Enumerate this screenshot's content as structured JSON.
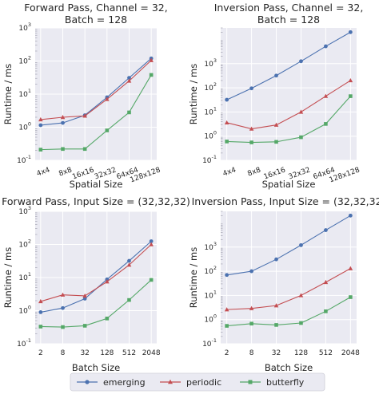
{
  "chart_data": [
    {
      "type": "line",
      "title_lines": [
        "Forward Pass, Channel = 32,",
        "Batch = 128"
      ],
      "xlabel": "Spatial Size",
      "ylabel": "Runtime / ms",
      "yscale": "log",
      "ylim": [
        0.1,
        1000
      ],
      "ytick_labels": [
        {
          "base": "10",
          "exp": "-1"
        },
        {
          "base": "10",
          "exp": "0"
        },
        {
          "base": "10",
          "exp": "1"
        },
        {
          "base": "10",
          "exp": "2"
        },
        {
          "base": "10",
          "exp": "3"
        }
      ],
      "categories": [
        "4x4",
        "8x8",
        "16x16",
        "32x32",
        "64x64",
        "128x128"
      ],
      "tick_rotation": 20,
      "series": [
        {
          "name": "emerging",
          "values": [
            1.15,
            1.35,
            2.3,
            8.0,
            31,
            120
          ]
        },
        {
          "name": "periodic",
          "values": [
            1.7,
            2.0,
            2.2,
            7.0,
            25,
            105
          ]
        },
        {
          "name": "butterfly",
          "values": [
            0.21,
            0.22,
            0.22,
            0.8,
            2.8,
            38
          ]
        }
      ]
    },
    {
      "type": "line",
      "title_lines": [
        "Inversion Pass, Channel = 32,",
        "Batch = 128"
      ],
      "xlabel": "Spatial Size",
      "ylabel": "Runtime / ms",
      "yscale": "log",
      "ylim": [
        0.1,
        30000
      ],
      "ytick_labels": [
        {
          "base": "10",
          "exp": "-1"
        },
        {
          "base": "10",
          "exp": "0"
        },
        {
          "base": "10",
          "exp": "1"
        },
        {
          "base": "10",
          "exp": "2"
        },
        {
          "base": "10",
          "exp": "3"
        }
      ],
      "categories": [
        "4x4",
        "8x8",
        "16x16",
        "32x32",
        "64x64",
        "128x128"
      ],
      "tick_rotation": 20,
      "series": [
        {
          "name": "emerging",
          "values": [
            32,
            95,
            320,
            1250,
            5200,
            20000
          ]
        },
        {
          "name": "periodic",
          "values": [
            3.6,
            2.0,
            2.9,
            10,
            45,
            200
          ]
        },
        {
          "name": "butterfly",
          "values": [
            0.6,
            0.55,
            0.58,
            0.9,
            3.2,
            45
          ]
        }
      ]
    },
    {
      "type": "line",
      "title_lines": [
        "Forward Pass, Input Size = (32,32,32)"
      ],
      "xlabel": "Batch Size",
      "ylabel": "Runtime / ms",
      "yscale": "log",
      "ylim": [
        0.1,
        1000
      ],
      "ytick_labels": [
        {
          "base": "10",
          "exp": "-1"
        },
        {
          "base": "10",
          "exp": "0"
        },
        {
          "base": "10",
          "exp": "1"
        },
        {
          "base": "10",
          "exp": "2"
        },
        {
          "base": "10",
          "exp": "3"
        }
      ],
      "categories": [
        "2",
        "8",
        "32",
        "128",
        "512",
        "2048"
      ],
      "tick_rotation": 0,
      "series": [
        {
          "name": "emerging",
          "values": [
            0.9,
            1.2,
            2.3,
            8.8,
            32,
            125
          ]
        },
        {
          "name": "periodic",
          "values": [
            1.9,
            3.0,
            2.8,
            7.5,
            24,
            100
          ]
        },
        {
          "name": "butterfly",
          "values": [
            0.33,
            0.32,
            0.35,
            0.58,
            2.1,
            8.5
          ]
        }
      ]
    },
    {
      "type": "line",
      "title_lines": [
        "Inversion Pass, Input Size = (32,32,32)"
      ],
      "xlabel": "Batch Size",
      "ylabel": "Runtime / ms",
      "yscale": "log",
      "ylim": [
        0.1,
        30000
      ],
      "ytick_labels": [
        {
          "base": "10",
          "exp": "-1"
        },
        {
          "base": "10",
          "exp": "0"
        },
        {
          "base": "10",
          "exp": "1"
        },
        {
          "base": "10",
          "exp": "2"
        },
        {
          "base": "10",
          "exp": "3"
        }
      ],
      "categories": [
        "2",
        "8",
        "32",
        "128",
        "512",
        "2048"
      ],
      "tick_rotation": 0,
      "series": [
        {
          "name": "emerging",
          "values": [
            70,
            100,
            310,
            1200,
            5000,
            20000
          ]
        },
        {
          "name": "periodic",
          "values": [
            2.6,
            2.9,
            3.8,
            10,
            35,
            130
          ]
        },
        {
          "name": "butterfly",
          "values": [
            0.55,
            0.68,
            0.6,
            0.72,
            2.2,
            8.5
          ]
        }
      ]
    }
  ],
  "legend": {
    "placement": "bottom",
    "entries": [
      {
        "label": "emerging",
        "color": "#4c72b0",
        "marker": "circle"
      },
      {
        "label": "periodic",
        "color": "#c44e52",
        "marker": "triangle"
      },
      {
        "label": "butterfly",
        "color": "#55a868",
        "marker": "square"
      }
    ]
  },
  "style": {
    "plot_background": "#eaeaf2",
    "grid_color": "#ffffff",
    "text_color": "#262626"
  }
}
